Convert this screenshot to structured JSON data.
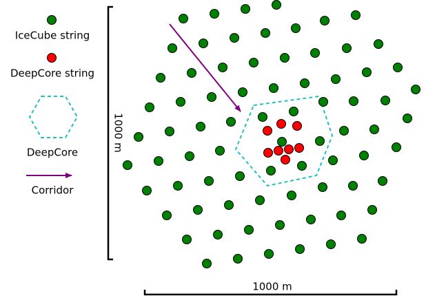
{
  "legend": {
    "items": [
      "IceCube string",
      "DeepCore string",
      "DeepCore",
      "Corridor"
    ]
  },
  "scale": {
    "vertical": "1000 m",
    "horizontal": "1000 m"
  }
}
